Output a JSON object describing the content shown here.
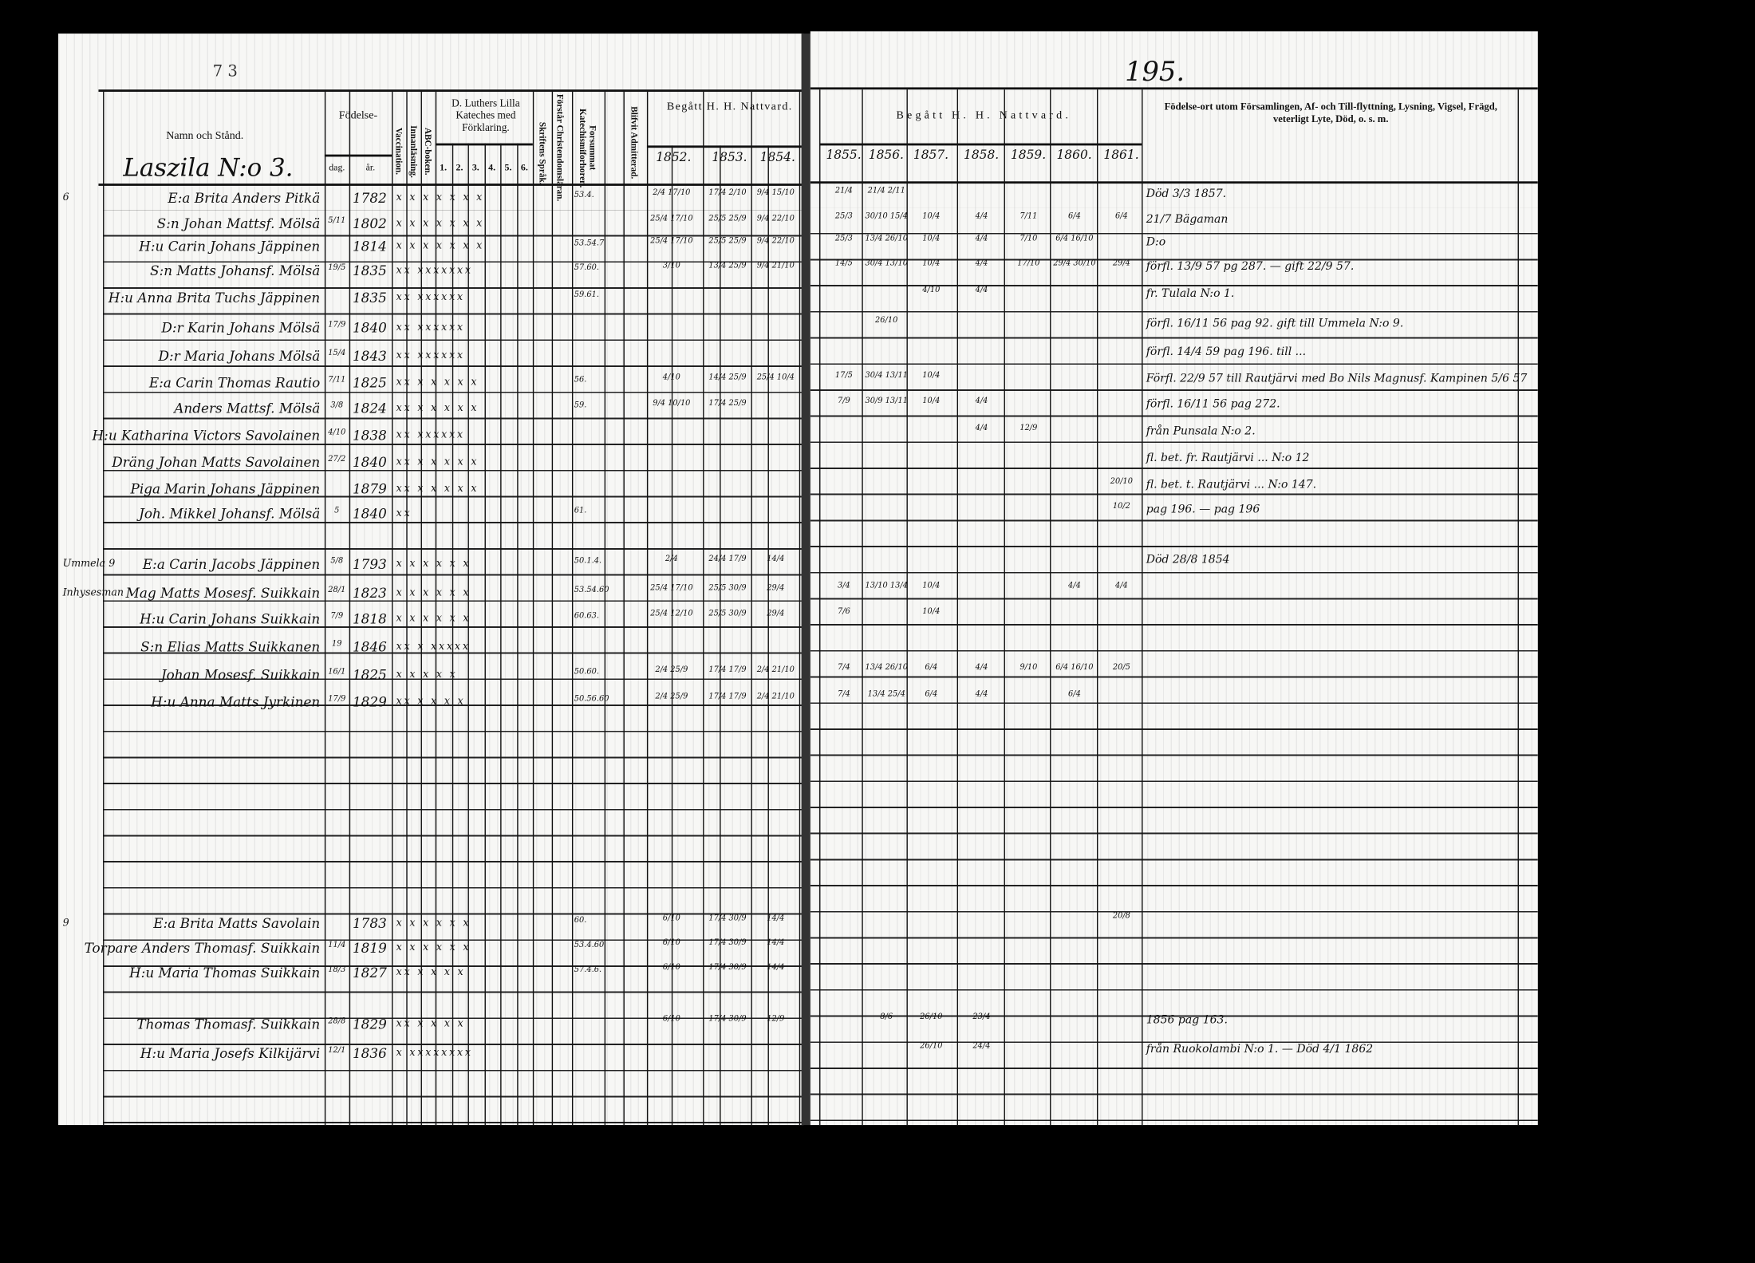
{
  "page_number": "195.",
  "top_mark": "7 3",
  "left_page": {
    "headers": {
      "name": "Namn och Stånd.",
      "fodelse": "Födelse-",
      "dag": "dag.",
      "ar": "år.",
      "vaccination": "Vaccination.",
      "innanlasning": "Innanläsning.",
      "abc": "ABC-boken.",
      "katechism": "D. Luthers Lilla Kateches med Förklaring.",
      "katechism_cols": [
        "1.",
        "2.",
        "3.",
        "4.",
        "5.",
        "6."
      ],
      "skriftens": "Skriftens Språk.",
      "forstar": "Förstår Christendomsläran.",
      "forsummat": "Forsummat Katechismiforhoren.",
      "blifvit": "Blifvit Admitterad.",
      "begatt": "Begått H. H. Nattvard.",
      "years": [
        "1852.",
        "1853.",
        "1854."
      ]
    },
    "village": "Laszila N:o 3."
  },
  "right_page": {
    "headers": {
      "begatt": "Begått H. H. Nattvard.",
      "years": [
        "1855.",
        "1856.",
        "1857.",
        "1858.",
        "1859.",
        "1860.",
        "1861."
      ],
      "remarks": "Födelse-ort utom Församlingen, Af- och Till-flyttning, Lysning, Vigsel, Frägd, veterligt Lyte, Död, o. s. m."
    }
  },
  "rows": [
    {
      "prefix": "6",
      "name": "E:a Brita Anders Pitkä",
      "dag": "",
      "ar": "1782",
      "marks": "x  x x x x x x",
      "forsummat": "53.4.",
      "natt": [
        "2/4 17/10",
        "17/4 2/10",
        "9/4 15/10",
        "21/4",
        "21/4 2/11",
        "",
        "",
        "",
        "",
        ""
      ],
      "remark": "Död 3/3 1857."
    },
    {
      "prefix": "",
      "name": "S:n Johan Mattsf. Mölsä",
      "dag": "5/11",
      "ar": "1802",
      "marks": "x  x x x x x x",
      "forsummat": "",
      "natt": [
        "25/4 17/10",
        "25/5 25/9",
        "9/4 22/10",
        "25/3",
        "30/10 15/4",
        "10/4",
        "4/4",
        "7/11",
        "6/4",
        "6/4"
      ],
      "remark": "21/7 Bägaman"
    },
    {
      "prefix": "",
      "name": "H:u Carin Johans Jäppinen",
      "dag": "",
      "ar": "1814",
      "marks": "x  x x x x x x",
      "forsummat": "53.54.7",
      "natt": [
        "25/4 17/10",
        "25/5 25/9",
        "9/4 22/10",
        "25/3",
        "13/4 26/10",
        "10/4",
        "4/4",
        "7/10",
        "6/4 16/10",
        ""
      ],
      "remark": "D:o"
    },
    {
      "prefix": "",
      "name": "S:n Matts Johansf. Mölsä",
      "dag": "19/5",
      "ar": "1835",
      "marks": "xx  xxxxxxx",
      "forsummat": "57.60.",
      "natt": [
        "3/10",
        "13/4 25/9",
        "9/4 21/10",
        "14/5",
        "30/4 13/10",
        "10/4",
        "4/4",
        "17/10",
        "29/4 30/10",
        "29/4"
      ],
      "remark": "förfl. 13/9 57 pg 287. — gift 22/9 57."
    },
    {
      "prefix": "",
      "name": "H:u Anna Brita Tuchs Jäppinen",
      "dag": "",
      "ar": "1835",
      "marks": "xx  xxxxxx",
      "forsummat": "59.61.",
      "natt": [
        "",
        "",
        "",
        "",
        "",
        "4/10",
        "4/4",
        "",
        "",
        ""
      ],
      "remark": "fr. Tulala N:o 1."
    },
    {
      "prefix": "",
      "name": "D:r Karin Johans Mölsä",
      "dag": "17/9",
      "ar": "1840",
      "marks": "xx  xxxxxx",
      "forsummat": "",
      "natt": [
        "",
        "",
        "",
        "",
        "26/10",
        "",
        "",
        "",
        "",
        ""
      ],
      "remark": "förfl. 16/11 56 pag 92. gift till Ummela N:o 9."
    },
    {
      "prefix": "",
      "name": "D:r Maria Johans Mölsä",
      "dag": "15/4",
      "ar": "1843",
      "marks": "xx  xxxxxx",
      "forsummat": "",
      "natt": [
        "",
        "",
        "",
        "",
        "",
        "",
        "",
        "",
        "",
        ""
      ],
      "remark": "förfl. 14/4 59 pag 196. till ..."
    },
    {
      "prefix": "",
      "name": "E:a Carin Thomas Rautio",
      "dag": "7/11",
      "ar": "1825",
      "marks": "xx  x x x x x",
      "forsummat": "56.",
      "natt": [
        "4/10",
        "14/4 25/9",
        "25/4 10/4",
        "17/5",
        "30/4 13/11",
        "10/4",
        "",
        "",
        "",
        ""
      ],
      "remark": "Förfl. 22/9 57 till Rautjärvi med Bo Nils Magnusf. Kampinen 5/6 57"
    },
    {
      "prefix": "",
      "name": "Anders Mattsf. Mölsä",
      "dag": "3/8",
      "ar": "1824",
      "marks": "xx  x x x x x",
      "forsummat": "59.",
      "natt": [
        "9/4 10/10",
        "17/4 25/9",
        "",
        "7/9",
        "30/9 13/11",
        "10/4",
        "4/4",
        "",
        "",
        ""
      ],
      "remark": "förfl. 16/11 56 pag 272."
    },
    {
      "prefix": "",
      "name": "H:u Katharina Victors Savolainen",
      "dag": "4/10",
      "ar": "1838",
      "marks": "xx  xxxxxx",
      "forsummat": "",
      "natt": [
        "",
        "",
        "",
        "",
        "",
        "",
        "4/4",
        "12/9",
        "",
        ""
      ],
      "remark": "från Punsala N:o 2."
    },
    {
      "prefix": "",
      "name": "Dräng Johan Matts Savolainen",
      "dag": "27/2",
      "ar": "1840",
      "marks": "xx x  x x x x",
      "forsummat": "",
      "natt": [
        "",
        "",
        "",
        "",
        "",
        "",
        "",
        "",
        "",
        ""
      ],
      "remark": "fl. bet. fr. Rautjärvi ... N:o 12"
    },
    {
      "prefix": "",
      "name": "Piga Marin Johans Jäppinen",
      "dag": "",
      "ar": "1879",
      "marks": "xx x  x x x x",
      "forsummat": "",
      "natt": [
        "",
        "",
        "",
        "",
        "",
        "",
        "",
        "",
        "",
        "20/10"
      ],
      "remark": "fl. bet. t. Rautjärvi ... N:o 147."
    },
    {
      "prefix": "",
      "name": "Joh. Mikkel Johansf. Mölsä",
      "dag": "5",
      "ar": "1840",
      "marks": "xx",
      "forsummat": "61.",
      "natt": [
        "",
        "",
        "",
        "",
        "",
        "",
        "",
        "",
        "",
        "10/2"
      ],
      "remark": "pag 196. — pag 196"
    },
    {
      "prefix": "Ummela 9",
      "name": "E:a Carin Jacobs Jäppinen",
      "dag": "5/8",
      "ar": "1793",
      "marks": "x  x x x x x",
      "forsummat": "50.1.4.",
      "natt": [
        "2/4",
        "24/4 17/9",
        "14/4",
        "",
        "",
        "",
        "",
        "",
        "",
        ""
      ],
      "remark": "Död 28/8 1854"
    },
    {
      "prefix": "Inhysesman",
      "name": "Mag Matts Mosesf. Suikkain",
      "dag": "28/1",
      "ar": "1823",
      "marks": "x  x x x x x",
      "forsummat": "53.54.60",
      "natt": [
        "25/4 17/10",
        "25/5 30/9",
        "29/4",
        "3/4",
        "13/10 13/4",
        "10/4",
        "",
        "",
        "4/4",
        "4/4"
      ],
      "remark": ""
    },
    {
      "prefix": "",
      "name": "H:u Carin Johans Suikkain",
      "dag": "7/9",
      "ar": "1818",
      "marks": "x  x x x x x",
      "forsummat": "60.63.",
      "natt": [
        "25/4 12/10",
        "25/5 30/9",
        "29/4",
        "7/6",
        "",
        "10/4",
        "",
        "",
        "",
        ""
      ],
      "remark": ""
    },
    {
      "prefix": "",
      "name": "S:n Elias Matts Suikkanen",
      "dag": "19",
      "ar": "1846",
      "marks": "xx x xxxxx",
      "forsummat": "",
      "natt": [
        "",
        "",
        "",
        "",
        "",
        "",
        "",
        "",
        "",
        ""
      ],
      "remark": ""
    },
    {
      "prefix": "",
      "name": "Johan Mosesf. Suikkain",
      "dag": "16/1",
      "ar": "1825",
      "marks": "x  x x x x",
      "forsummat": "50.60.",
      "natt": [
        "2/4 25/9",
        "17/4 17/9",
        "2/4 21/10",
        "7/4",
        "13/4 26/10",
        "6/4",
        "4/4",
        "9/10",
        "6/4 16/10",
        "20/5"
      ],
      "remark": ""
    },
    {
      "prefix": "",
      "name": "H:u Anna Matts Jyrkinen",
      "dag": "17/9",
      "ar": "1829",
      "marks": "xx  x x x x",
      "forsummat": "50.56.60",
      "natt": [
        "2/4 25/9",
        "17/4 17/9",
        "2/4 21/10",
        "7/4",
        "13/4 25/4",
        "6/4",
        "4/4",
        "",
        "6/4",
        ""
      ],
      "remark": ""
    },
    {
      "prefix": "9",
      "name": "E:a Brita Matts Savolain",
      "dag": "",
      "ar": "1783",
      "marks": "x  x x x x x",
      "forsummat": "60.",
      "natt": [
        "6/10",
        "17/4 30/9",
        "14/4",
        "",
        "",
        "",
        "",
        "",
        "",
        "20/8"
      ],
      "remark": ""
    },
    {
      "prefix": "",
      "name": "Torpare Anders Thomasf. Suikkain",
      "dag": "11/4",
      "ar": "1819",
      "marks": "x  x x x x x",
      "forsummat": "53.4.60",
      "natt": [
        "6/10",
        "17/4 30/9",
        "14/4",
        "",
        "",
        "",
        "",
        "",
        "",
        ""
      ],
      "remark": ""
    },
    {
      "prefix": "",
      "name": "H:u Maria Thomas Suikkain",
      "dag": "18/3",
      "ar": "1827",
      "marks": "xx  x x x x",
      "forsummat": "57.4.6.",
      "natt": [
        "6/10",
        "17/4 30/9",
        "14/4",
        "",
        "",
        "",
        "",
        "",
        "",
        ""
      ],
      "remark": ""
    },
    {
      "prefix": "",
      "name": "Thomas Thomasf. Suikkain",
      "dag": "28/8",
      "ar": "1829",
      "marks": "xx  x x x x",
      "forsummat": "",
      "natt": [
        "6/10",
        "17/4 30/9",
        "12/9",
        "",
        "8/6",
        "26/10",
        "23/4",
        "",
        "",
        ""
      ],
      "remark": "1856 pag 163."
    },
    {
      "prefix": "",
      "name": "H:u Maria Josefs Kilkijärvi",
      "dag": "12/1",
      "ar": "1836",
      "marks": "x  xxxxxxxx",
      "forsummat": "",
      "natt": [
        "",
        "",
        "",
        "",
        "",
        "26/10",
        "24/4",
        "",
        "",
        ""
      ],
      "remark": "från Ruokolambi N:o 1. — Död 4/1 1862"
    }
  ]
}
